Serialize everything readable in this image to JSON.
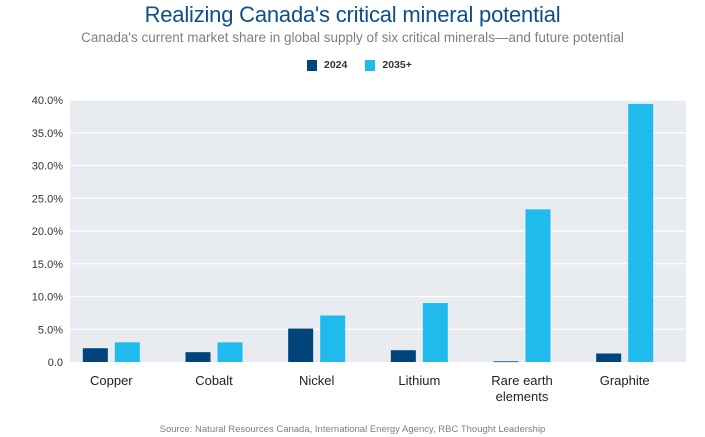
{
  "chart_data": {
    "type": "bar",
    "title": "Realizing Canada's critical mineral potential",
    "subtitle": "Canada's current market share in global supply of six critical minerals—and future potential",
    "categories": [
      [
        "Copper"
      ],
      [
        "Cobalt"
      ],
      [
        "Nickel"
      ],
      [
        "Lithium"
      ],
      [
        "Rare earth",
        "elements"
      ],
      [
        "Graphite"
      ]
    ],
    "series": [
      {
        "name": "2024",
        "color": "#00447c",
        "values": [
          2.1,
          1.5,
          5.1,
          1.8,
          0.1,
          1.3
        ]
      },
      {
        "name": "2035+",
        "color": "#1fbbed",
        "values": [
          3.0,
          3.0,
          7.1,
          9.0,
          23.3,
          39.4
        ]
      }
    ],
    "xlabel": "",
    "ylabel": "",
    "ylim": [
      0,
      40
    ],
    "yticks": [
      0,
      5,
      10,
      15,
      20,
      25,
      30,
      35,
      40
    ],
    "ytick_labels": [
      "0.0",
      "5.0%",
      "10.0%",
      "15.0%",
      "20.0%",
      "25.0%",
      "30.0%",
      "35.0%",
      "40.0%"
    ],
    "grid": true,
    "legend_position": "top-center",
    "plot_background": "#e8ebef",
    "source": "Source: Natural Resources Canada, International Energy Agency, RBC Thought Leadership"
  }
}
